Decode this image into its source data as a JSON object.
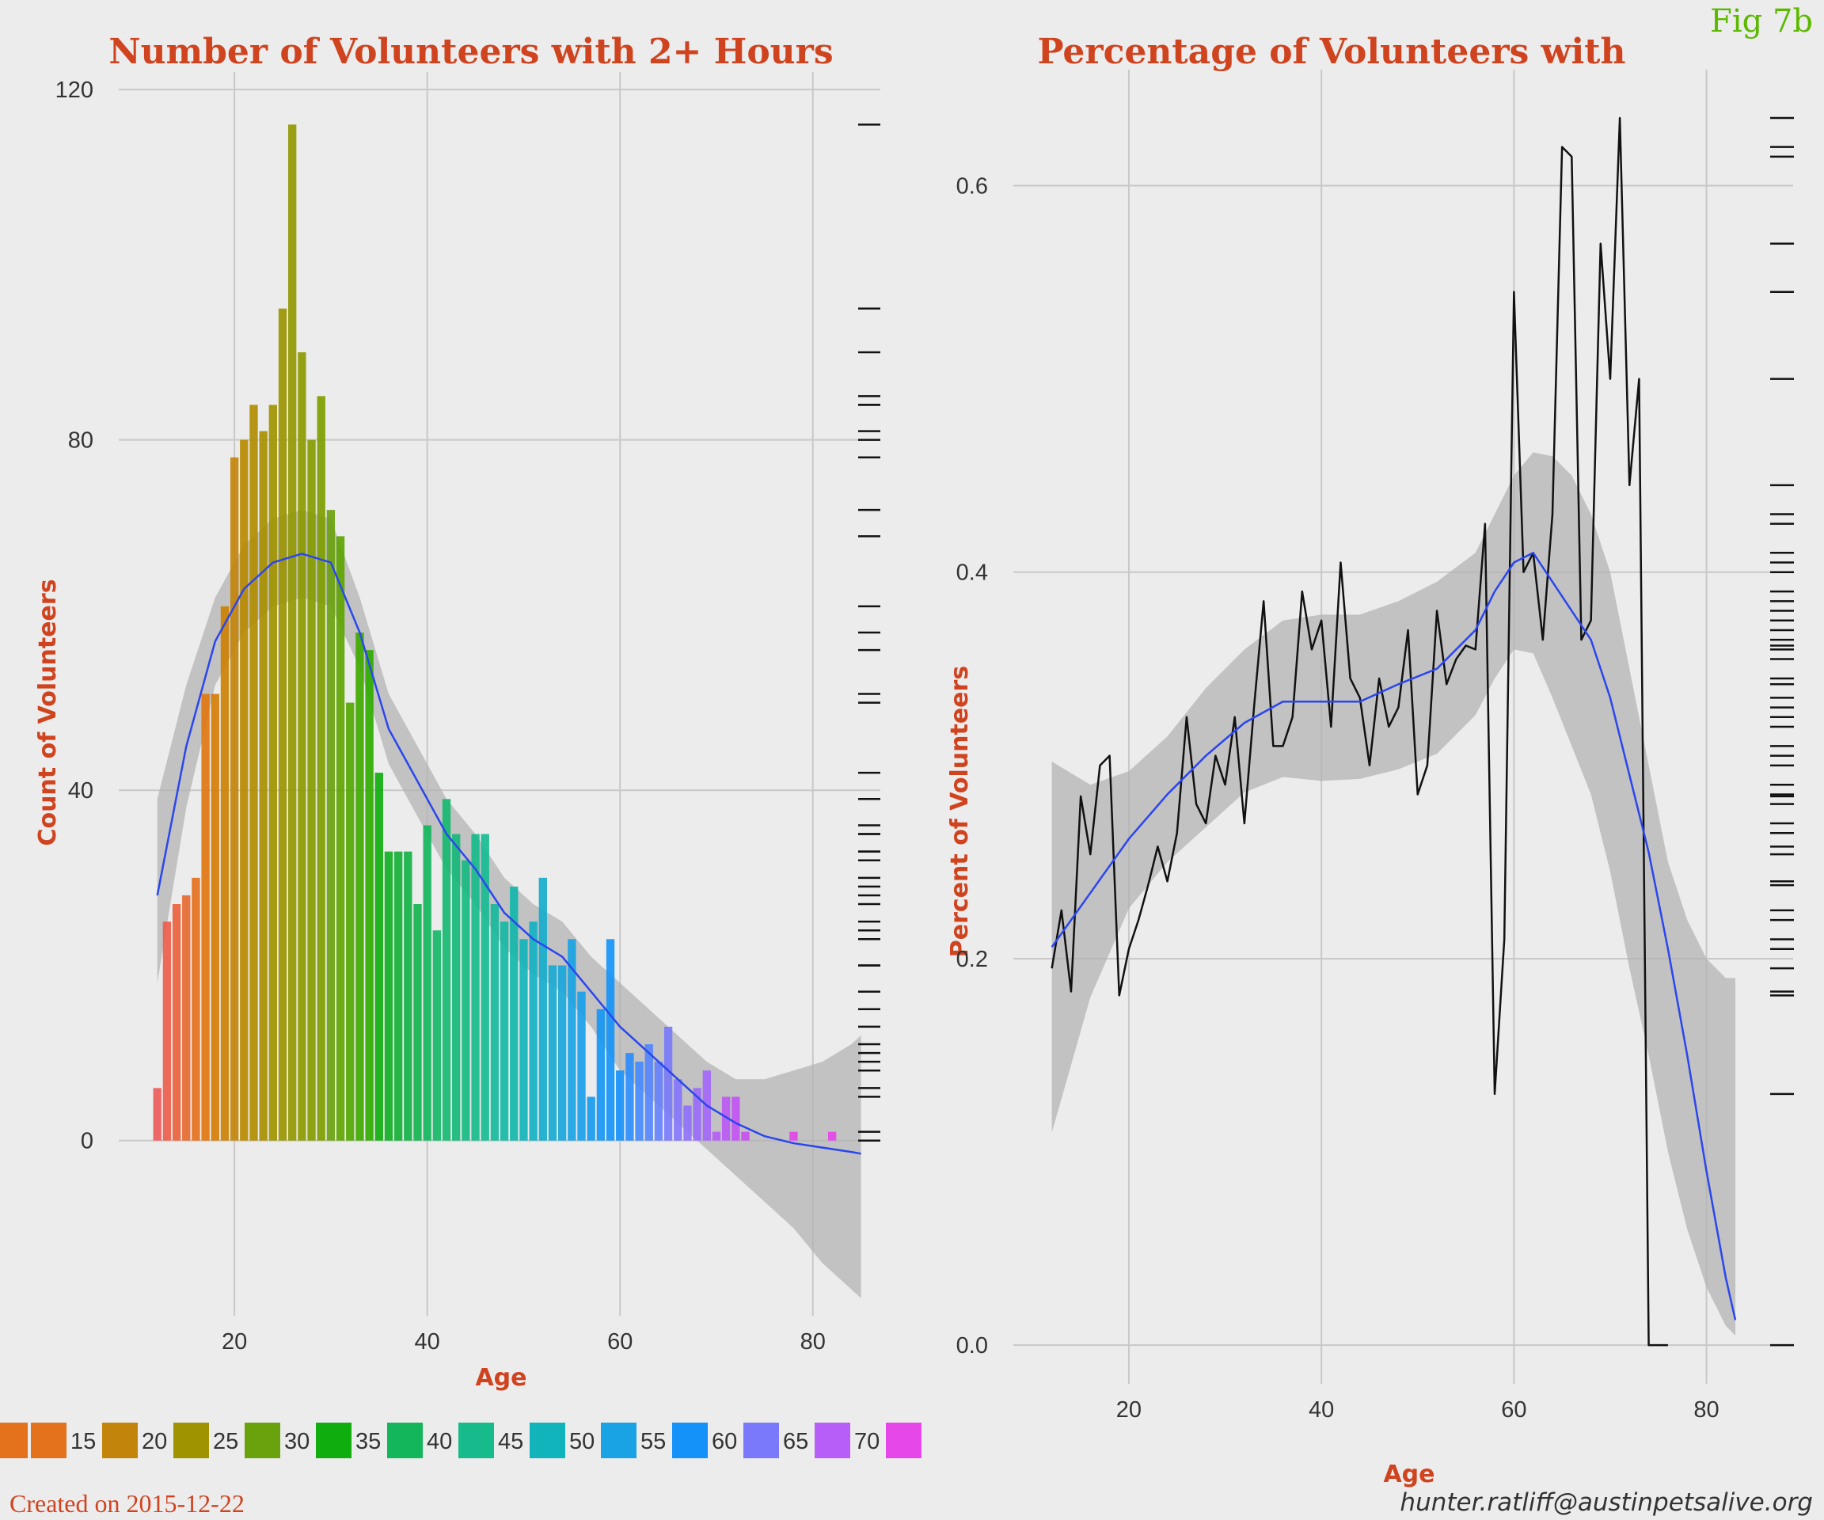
{
  "figure_label": "Fig 7b",
  "footer": {
    "created": "Created on 2015-12-22",
    "email": "hunter.ratliff@austinpetsalive.org"
  },
  "legend": {
    "items": [
      {
        "label": "",
        "color": "#e4711c"
      },
      {
        "label": "15",
        "color": "#e4711c"
      },
      {
        "label": "20",
        "color": "#c3840b"
      },
      {
        "label": "25",
        "color": "#9f9400"
      },
      {
        "label": "30",
        "color": "#6aa20e"
      },
      {
        "label": "35",
        "color": "#10ad0f"
      },
      {
        "label": "40",
        "color": "#14b65c"
      },
      {
        "label": "45",
        "color": "#17bb8b"
      },
      {
        "label": "50",
        "color": "#12b4bb"
      },
      {
        "label": "55",
        "color": "#1aa3e4"
      },
      {
        "label": "60",
        "color": "#1591fa"
      },
      {
        "label": "65",
        "color": "#7a79fb"
      },
      {
        "label": "70",
        "color": "#b65ef7"
      },
      {
        "label": "",
        "color": "#e647e8"
      }
    ]
  },
  "chart_data": [
    {
      "type": "bar",
      "title": "Number of Volunteers with 2+ Hours",
      "xlabel": "Age",
      "ylabel": "Count of Volunteers",
      "xlim": [
        8,
        87
      ],
      "ylim": [
        -20,
        122
      ],
      "xticks": [
        20,
        40,
        60,
        80
      ],
      "yticks": [
        0,
        40,
        80,
        120
      ],
      "grid": true,
      "legend": "bottom",
      "x": [
        12,
        13,
        14,
        15,
        16,
        17,
        18,
        19,
        20,
        21,
        22,
        23,
        24,
        25,
        26,
        27,
        28,
        29,
        30,
        31,
        32,
        33,
        34,
        35,
        36,
        37,
        38,
        39,
        40,
        41,
        42,
        43,
        44,
        45,
        46,
        47,
        48,
        49,
        50,
        51,
        52,
        53,
        54,
        55,
        56,
        57,
        58,
        59,
        60,
        61,
        62,
        63,
        64,
        65,
        66,
        67,
        68,
        69,
        70,
        71,
        72,
        73,
        74,
        75,
        76,
        77,
        78,
        79,
        80,
        81,
        82
      ],
      "values": [
        6,
        25,
        27,
        28,
        30,
        51,
        51,
        61,
        78,
        80,
        84,
        81,
        84,
        95,
        116,
        90,
        80,
        85,
        72,
        69,
        50,
        58,
        56,
        42,
        33,
        33,
        33,
        27,
        36,
        24,
        39,
        35,
        32,
        35,
        35,
        27,
        25,
        29,
        23,
        25,
        30,
        20,
        20,
        23,
        17,
        5,
        15,
        23,
        8,
        10,
        9,
        11,
        9,
        13,
        7,
        4,
        6,
        8,
        1,
        5,
        5,
        1,
        0,
        0,
        0,
        0,
        1,
        0,
        0,
        0,
        1
      ],
      "bar_colors": [
        "#ef5c5c",
        "#ec5e4c",
        "#e9633e",
        "#e66a30",
        "#e4711c",
        "#e0770f",
        "#d57d07",
        "#cc8104",
        "#c3840b",
        "#b98a00",
        "#b08d00",
        "#a89000",
        "#9f9400",
        "#9a9500",
        "#949800",
        "#8c9a00",
        "#859c00",
        "#7e9e00",
        "#6aa20e",
        "#5ea500",
        "#52a700",
        "#40a900",
        "#2fab00",
        "#10ad0f",
        "#11ae25",
        "#12b035",
        "#13b245",
        "#13b450",
        "#14b65c",
        "#15b766",
        "#16b870",
        "#16b978",
        "#17ba82",
        "#17bb8b",
        "#17bb94",
        "#16ba9c",
        "#15b8a4",
        "#14b6ab",
        "#12b4bb",
        "#14b1c4",
        "#16aecc",
        "#17aad3",
        "#19a7da",
        "#1aa3e4",
        "#1a9fe9",
        "#189bee",
        "#1697f3",
        "#1594f7",
        "#1591fa",
        "#2d8dfb",
        "#448afb",
        "#5586fb",
        "#6682fb",
        "#7a79fb",
        "#8575fb",
        "#8f71fa",
        "#9a6dfa",
        "#a468f9",
        "#b65ef7",
        "#bc5af5",
        "#c255f3",
        "#c851f1",
        "#ce4dee",
        "#d44aec",
        "#da48ea",
        "#de47e9",
        "#e247e8",
        "#e447e8",
        "#e547e8",
        "#e647e8",
        "#e647e8"
      ],
      "smooth": {
        "x": [
          12,
          15,
          18,
          21,
          24,
          27,
          30,
          33,
          36,
          39,
          42,
          45,
          48,
          51,
          54,
          57,
          60,
          63,
          66,
          69,
          72,
          75,
          78,
          81,
          84,
          85
        ],
        "y": [
          28,
          45,
          57,
          63,
          66,
          67,
          66,
          58,
          47,
          41,
          35,
          31,
          26,
          23,
          21,
          17,
          13,
          10,
          7,
          4,
          2,
          0.5,
          -0.3,
          -0.8,
          -1.3,
          -1.5
        ],
        "lo": [
          18,
          38,
          52,
          58,
          61,
          62,
          61,
          54,
          43,
          37,
          31,
          27,
          22,
          19,
          17,
          13,
          8,
          5,
          2,
          -1,
          -4,
          -7,
          -10,
          -14,
          -17,
          -18
        ],
        "hi": [
          39,
          52,
          62,
          68,
          71,
          72,
          71,
          62,
          51,
          45,
          39,
          35,
          30,
          27,
          25,
          21,
          18,
          15,
          12,
          9,
          7,
          7,
          8,
          9,
          11,
          12
        ]
      },
      "rug_y": [
        0,
        1,
        5,
        6,
        8,
        9,
        10,
        11,
        13,
        15,
        17,
        20,
        20,
        23,
        24,
        25,
        27,
        28,
        29,
        30,
        32,
        33,
        33,
        35,
        35,
        36,
        39,
        42,
        50,
        51,
        56,
        58,
        61,
        69,
        72,
        78,
        80,
        81,
        84,
        84,
        85,
        90,
        95,
        116
      ]
    },
    {
      "type": "line",
      "title": "Percentage of Volunteers with",
      "xlabel": "Age",
      "ylabel": "Percent of Volunteers",
      "xlim": [
        8,
        89
      ],
      "ylim": [
        -0.02,
        0.66
      ],
      "xticks": [
        20,
        40,
        60,
        80
      ],
      "yticks": [
        0.0,
        0.2,
        0.4,
        0.6
      ],
      "grid": true,
      "x": [
        12,
        13,
        14,
        15,
        16,
        17,
        18,
        19,
        20,
        21,
        22,
        23,
        24,
        25,
        26,
        27,
        28,
        29,
        30,
        31,
        32,
        33,
        34,
        35,
        36,
        37,
        38,
        39,
        40,
        41,
        42,
        43,
        44,
        45,
        46,
        47,
        48,
        49,
        50,
        51,
        52,
        53,
        54,
        55,
        56,
        57,
        58,
        59,
        60,
        61,
        62,
        63,
        64,
        65,
        66,
        67,
        68,
        69,
        70,
        71,
        72,
        73,
        74,
        75,
        76
      ],
      "y": [
        0.195,
        0.225,
        0.183,
        0.284,
        0.254,
        0.3,
        0.305,
        0.181,
        0.205,
        0.22,
        0.238,
        0.258,
        0.24,
        0.265,
        0.325,
        0.28,
        0.27,
        0.305,
        0.29,
        0.325,
        0.27,
        0.33,
        0.385,
        0.31,
        0.31,
        0.325,
        0.39,
        0.36,
        0.375,
        0.32,
        0.405,
        0.345,
        0.335,
        0.3,
        0.345,
        0.32,
        0.33,
        0.37,
        0.285,
        0.3,
        0.38,
        0.342,
        0.355,
        0.362,
        0.36,
        0.425,
        0.13,
        0.21,
        0.545,
        0.4,
        0.41,
        0.365,
        0.43,
        0.62,
        0.615,
        0.365,
        0.375,
        0.57,
        0.5,
        0.635,
        0.445,
        0.5,
        0.0,
        0.0,
        0.0
      ],
      "smooth": {
        "x": [
          12,
          16,
          20,
          24,
          28,
          32,
          36,
          40,
          44,
          48,
          52,
          56,
          58,
          60,
          62,
          64,
          66,
          68,
          70,
          72,
          74,
          76,
          78,
          80,
          82,
          83
        ],
        "y": [
          0.206,
          0.234,
          0.262,
          0.285,
          0.305,
          0.322,
          0.333,
          0.333,
          0.333,
          0.342,
          0.35,
          0.37,
          0.39,
          0.405,
          0.41,
          0.395,
          0.38,
          0.365,
          0.335,
          0.295,
          0.255,
          0.205,
          0.15,
          0.09,
          0.035,
          0.013
        ],
        "lo": [
          0.11,
          0.18,
          0.226,
          0.25,
          0.268,
          0.286,
          0.294,
          0.292,
          0.293,
          0.298,
          0.306,
          0.326,
          0.345,
          0.36,
          0.358,
          0.335,
          0.31,
          0.285,
          0.245,
          0.195,
          0.15,
          0.1,
          0.06,
          0.03,
          0.01,
          0.005
        ],
        "hi": [
          0.302,
          0.29,
          0.297,
          0.315,
          0.34,
          0.36,
          0.375,
          0.378,
          0.378,
          0.385,
          0.395,
          0.41,
          0.43,
          0.45,
          0.462,
          0.46,
          0.45,
          0.43,
          0.4,
          0.35,
          0.3,
          0.25,
          0.22,
          0.2,
          0.19,
          0.19
        ]
      },
      "rug_y": [
        0.0,
        0.13,
        0.181,
        0.183,
        0.195,
        0.205,
        0.21,
        0.22,
        0.225,
        0.238,
        0.24,
        0.254,
        0.258,
        0.265,
        0.27,
        0.28,
        0.284,
        0.285,
        0.29,
        0.3,
        0.305,
        0.31,
        0.32,
        0.325,
        0.33,
        0.335,
        0.342,
        0.345,
        0.355,
        0.36,
        0.362,
        0.365,
        0.37,
        0.375,
        0.38,
        0.385,
        0.39,
        0.4,
        0.405,
        0.41,
        0.425,
        0.43,
        0.445,
        0.5,
        0.545,
        0.57,
        0.615,
        0.62,
        0.635
      ]
    }
  ]
}
